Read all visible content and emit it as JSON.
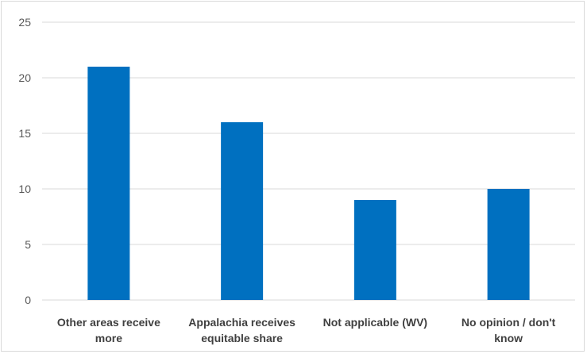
{
  "chart_data": {
    "type": "bar",
    "title": "",
    "xlabel": "",
    "ylabel": "",
    "categories": [
      [
        "Other areas receive",
        "more"
      ],
      [
        "Appalachia receives",
        "equitable share"
      ],
      [
        "Not applicable (WV)"
      ],
      [
        "No opinion / don't",
        "know"
      ]
    ],
    "values": [
      21,
      16,
      9,
      10
    ],
    "ylim": [
      0,
      25
    ],
    "yticks": [
      0,
      5,
      10,
      15,
      20,
      25
    ],
    "grid": true,
    "legend": "none",
    "bar_color": "#0070C0",
    "grid_color": "#d9d9d9"
  }
}
